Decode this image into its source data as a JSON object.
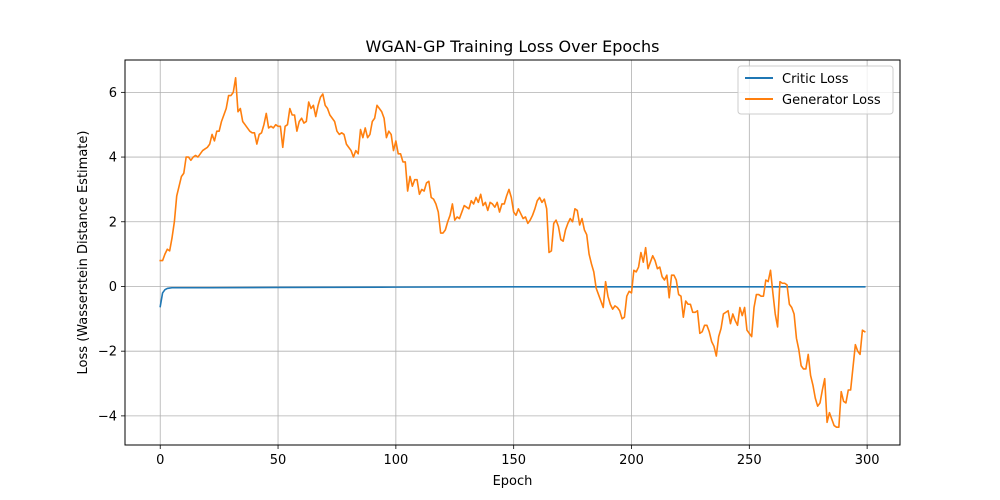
{
  "chart_data": {
    "type": "line",
    "title": "WGAN-GP Training Loss Over Epochs",
    "xlabel": "Epoch",
    "ylabel": "Loss (Wasserstein Distance Estimate)",
    "xlim": [
      -14.95,
      313.95
    ],
    "ylim": [
      -4.9,
      7.0
    ],
    "xticks": [
      0,
      50,
      100,
      150,
      200,
      250,
      300
    ],
    "yticks": [
      -4,
      -2,
      0,
      2,
      4,
      6
    ],
    "grid": true,
    "legend_position": "top-right",
    "series": [
      {
        "name": "Critic Loss",
        "color": "#1f77b4",
        "x": [
          0,
          1,
          2,
          3,
          4,
          5,
          6,
          8,
          10,
          20,
          50,
          100,
          150,
          200,
          250,
          299
        ],
        "y": [
          -0.62,
          -0.2,
          -0.1,
          -0.06,
          -0.05,
          -0.04,
          -0.04,
          -0.04,
          -0.04,
          -0.04,
          -0.03,
          -0.02,
          -0.01,
          -0.01,
          -0.01,
          -0.01
        ]
      },
      {
        "name": "Generator Loss",
        "color": "#ff7f0e",
        "x": [
          0,
          1,
          2,
          3,
          4,
          5,
          6,
          7,
          8,
          9,
          10,
          11,
          12,
          13,
          14,
          15,
          16,
          17,
          18,
          19,
          20,
          21,
          22,
          23,
          24,
          25,
          26,
          27,
          28,
          29,
          30,
          31,
          32,
          33,
          34,
          35,
          36,
          37,
          38,
          39,
          40,
          41,
          42,
          43,
          44,
          45,
          46,
          47,
          48,
          49,
          50,
          51,
          52,
          53,
          54,
          55,
          56,
          57,
          58,
          59,
          60,
          61,
          62,
          63,
          64,
          65,
          66,
          67,
          68,
          69,
          70,
          71,
          72,
          73,
          74,
          75,
          76,
          77,
          78,
          79,
          80,
          81,
          82,
          83,
          84,
          85,
          86,
          87,
          88,
          89,
          90,
          91,
          92,
          93,
          94,
          95,
          96,
          97,
          98,
          99,
          100,
          101,
          102,
          103,
          104,
          105,
          106,
          107,
          108,
          109,
          110,
          111,
          112,
          113,
          114,
          115,
          116,
          117,
          118,
          119,
          120,
          121,
          122,
          123,
          124,
          125,
          126,
          127,
          128,
          129,
          130,
          131,
          132,
          133,
          134,
          135,
          136,
          137,
          138,
          139,
          140,
          141,
          142,
          143,
          144,
          145,
          146,
          147,
          148,
          149,
          150,
          151,
          152,
          153,
          154,
          155,
          156,
          157,
          158,
          159,
          160,
          161,
          162,
          163,
          164,
          165,
          166,
          167,
          168,
          169,
          170,
          171,
          172,
          173,
          174,
          175,
          176,
          177,
          178,
          179,
          180,
          181,
          182,
          183,
          184,
          185,
          186,
          187,
          188,
          189,
          190,
          191,
          192,
          193,
          194,
          195,
          196,
          197,
          198,
          199,
          200,
          201,
          202,
          203,
          204,
          205,
          206,
          207,
          208,
          209,
          210,
          211,
          212,
          213,
          214,
          215,
          216,
          217,
          218,
          219,
          220,
          221,
          222,
          223,
          224,
          225,
          226,
          227,
          228,
          229,
          230,
          231,
          232,
          233,
          234,
          235,
          236,
          237,
          238,
          239,
          240,
          241,
          242,
          243,
          244,
          245,
          246,
          247,
          248,
          249,
          250,
          251,
          252,
          253,
          254,
          255,
          256,
          257,
          258,
          259,
          260,
          261,
          262,
          263,
          264,
          265,
          266,
          267,
          268,
          269,
          270,
          271,
          272,
          273,
          274,
          275,
          276,
          277,
          278,
          279,
          280,
          281,
          282,
          283,
          284,
          285,
          286,
          287,
          288,
          289,
          290,
          291,
          292,
          293,
          294,
          295,
          296,
          297,
          298,
          299
        ],
        "y": [
          0.8,
          0.8,
          1.0,
          1.15,
          1.1,
          1.5,
          2.0,
          2.8,
          3.1,
          3.4,
          3.5,
          4.0,
          4.0,
          3.9,
          4.0,
          4.05,
          4.0,
          4.1,
          4.2,
          4.25,
          4.3,
          4.4,
          4.7,
          4.5,
          4.8,
          4.8,
          5.1,
          5.3,
          5.5,
          5.9,
          5.9,
          6.0,
          6.45,
          5.4,
          5.5,
          5.1,
          5.0,
          4.9,
          4.8,
          4.75,
          4.75,
          4.4,
          4.7,
          4.75,
          5.0,
          5.35,
          4.9,
          4.95,
          4.9,
          5.0,
          4.95,
          4.95,
          4.3,
          4.95,
          5.0,
          5.5,
          5.3,
          5.3,
          4.8,
          5.1,
          5.2,
          5.05,
          5.1,
          5.7,
          5.5,
          5.6,
          5.25,
          5.6,
          5.85,
          5.95,
          5.6,
          5.5,
          5.3,
          5.2,
          5.1,
          4.8,
          4.7,
          4.75,
          4.7,
          4.4,
          4.3,
          4.2,
          4.0,
          4.2,
          4.1,
          4.85,
          4.6,
          4.9,
          4.6,
          4.7,
          5.1,
          5.2,
          5.6,
          5.5,
          5.4,
          5.2,
          4.6,
          4.8,
          4.7,
          4.2,
          4.5,
          4.1,
          4.1,
          3.85,
          3.85,
          2.95,
          3.4,
          3.1,
          3.3,
          3.3,
          2.85,
          3.0,
          2.95,
          3.2,
          3.25,
          2.75,
          2.7,
          2.55,
          2.3,
          1.65,
          1.65,
          1.75,
          2.0,
          2.2,
          2.55,
          2.05,
          2.15,
          2.1,
          2.3,
          2.5,
          2.45,
          2.4,
          2.65,
          2.55,
          2.75,
          2.6,
          2.85,
          2.5,
          2.6,
          2.35,
          2.6,
          2.55,
          2.45,
          2.6,
          2.3,
          2.55,
          2.55,
          2.8,
          3.0,
          2.75,
          2.3,
          2.2,
          2.4,
          2.25,
          2.1,
          2.15,
          1.95,
          2.05,
          2.2,
          2.4,
          2.65,
          2.75,
          2.6,
          2.7,
          2.4,
          1.05,
          1.1,
          1.95,
          2.05,
          1.85,
          1.45,
          1.4,
          1.75,
          1.95,
          2.1,
          2.0,
          2.4,
          2.35,
          1.9,
          2.1,
          1.75,
          1.6,
          1.0,
          0.7,
          0.45,
          -0.05,
          -0.25,
          -0.45,
          -0.65,
          0.15,
          -0.3,
          -0.55,
          -0.7,
          -0.6,
          -0.65,
          -0.75,
          -1.0,
          -0.95,
          -0.3,
          -0.15,
          -0.2,
          0.5,
          0.45,
          0.6,
          1.05,
          0.75,
          1.2,
          0.55,
          0.75,
          0.95,
          0.8,
          0.55,
          0.6,
          0.3,
          0.2,
          0.35,
          -0.35,
          0.35,
          0.35,
          0.2,
          -0.25,
          -0.3,
          -0.95,
          -0.45,
          -0.55,
          -0.55,
          -0.8,
          -0.8,
          -0.75,
          -1.45,
          -1.4,
          -1.2,
          -1.2,
          -1.4,
          -1.7,
          -1.85,
          -2.15,
          -1.55,
          -1.3,
          -0.85,
          -0.8,
          -0.75,
          -1.15,
          -0.85,
          -1.05,
          -1.2,
          -0.65,
          -0.9,
          -0.65,
          -1.35,
          -1.45,
          -1.55,
          -0.65,
          -0.25,
          -0.25,
          -0.3,
          -0.3,
          0.2,
          0.15,
          0.5,
          -0.2,
          -0.85,
          -1.25,
          0.15,
          0.1,
          0.1,
          0.05,
          -0.55,
          -0.65,
          -0.85,
          -1.6,
          -1.95,
          -2.45,
          -2.55,
          -2.55,
          -2.1,
          -2.75,
          -3.05,
          -3.45,
          -3.7,
          -3.6,
          -3.2,
          -2.85,
          -4.2,
          -3.9,
          -4.1,
          -4.3,
          -4.35,
          -4.35,
          -3.25,
          -3.55,
          -3.6,
          -3.2,
          -3.2,
          -2.5,
          -1.8,
          -2.0,
          -2.1,
          -1.35,
          -1.4
        ]
      }
    ]
  }
}
